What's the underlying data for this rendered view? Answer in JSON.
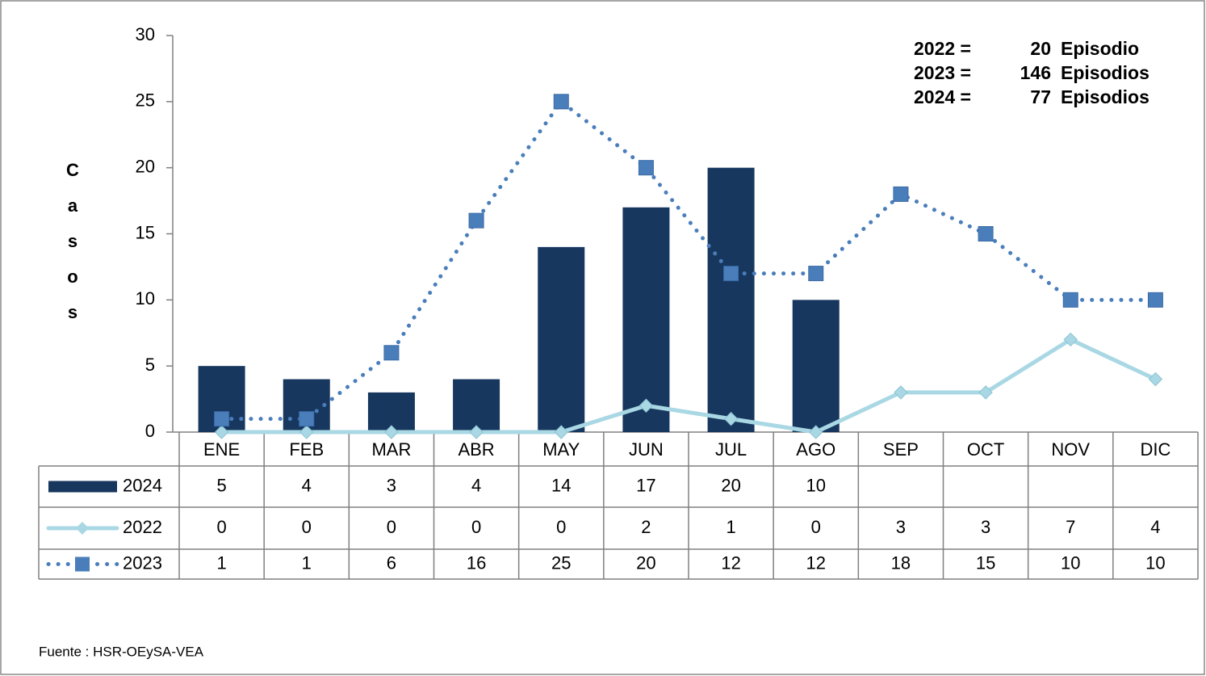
{
  "chart_data": {
    "type": "bar-line-table",
    "y_label": "Casos",
    "categories": [
      "ENE",
      "FEB",
      "MAR",
      "ABR",
      "MAY",
      "JUN",
      "JUL",
      "AGO",
      "SEP",
      "OCT",
      "NOV",
      "DIC"
    ],
    "series": [
      {
        "name": "2024",
        "type": "bar",
        "color": "#17375e",
        "values": [
          5,
          4,
          3,
          4,
          14,
          17,
          20,
          10,
          null,
          null,
          null,
          null
        ]
      },
      {
        "name": "2022",
        "type": "line",
        "marker": "diamond",
        "color": "#a9d8e4",
        "values": [
          0,
          0,
          0,
          0,
          0,
          2,
          1,
          0,
          3,
          3,
          7,
          4
        ]
      },
      {
        "name": "2023",
        "type": "line",
        "marker": "square",
        "dotted": true,
        "color": "#4a7ebb",
        "values": [
          1,
          1,
          6,
          16,
          25,
          20,
          12,
          12,
          18,
          15,
          10,
          10
        ]
      }
    ],
    "ylim": [
      0,
      30
    ],
    "yticks": [
      0,
      5,
      10,
      15,
      20,
      25,
      30
    ],
    "annotations": [
      {
        "label": "2022 =",
        "value": "20",
        "unit": "Episodio"
      },
      {
        "label": "2023 =",
        "value": "146",
        "unit": "Episodios"
      },
      {
        "label": "2024 =",
        "value": "77",
        "unit": "Episodios"
      }
    ],
    "source": "Fuente : HSR-OEySA-VEA"
  }
}
